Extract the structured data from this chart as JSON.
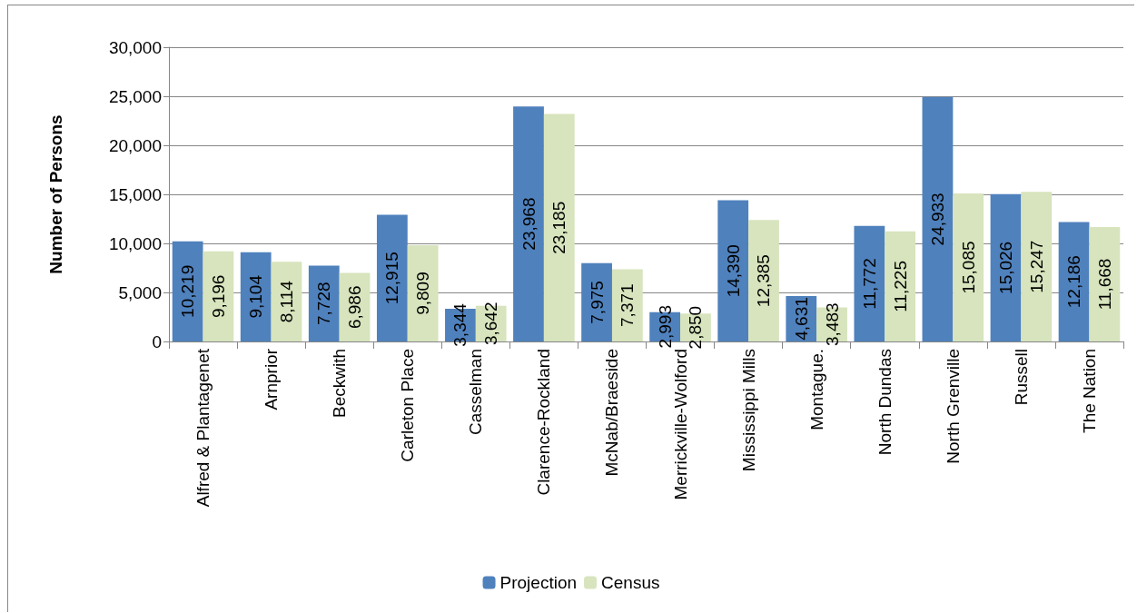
{
  "chart_data": {
    "type": "bar",
    "ylabel": "Number of Persons",
    "categories": [
      "Alfred & Plantagenet",
      "Arnprior",
      "Beckwith",
      "Carleton Place",
      "Casselman",
      "Clarence-Rockland",
      "McNab/Braeside",
      "Merrickville-Wolford",
      "Mississippi Mills",
      "Montague.",
      "North Dundas",
      "North Grenville",
      "Russell",
      "The Nation"
    ],
    "series": [
      {
        "name": "Projection",
        "color": "#4f81bd",
        "values": [
          10219,
          9104,
          7728,
          12915,
          3344,
          23968,
          7975,
          2993,
          14390,
          4631,
          11772,
          24933,
          15026,
          12186
        ],
        "value_labels": [
          "10,219",
          "9,104",
          "7,728",
          "12,915",
          "3,344",
          "23,968",
          "7,975",
          "2,993",
          "14,390",
          "4,631",
          "11,772",
          "24,933",
          "15,026",
          "12,186"
        ]
      },
      {
        "name": "Census",
        "color": "#d7e4bd",
        "values": [
          9196,
          8114,
          6986,
          9809,
          3642,
          23185,
          7371,
          2850,
          12385,
          3483,
          11225,
          15085,
          15247,
          11668
        ],
        "value_labels": [
          "9,196",
          "8,114",
          "6,986",
          "9,809",
          "3,642",
          "23,185",
          "7,371",
          "2,850",
          "12,385",
          "3,483",
          "11,225",
          "15,085",
          "15,247",
          "11,668"
        ]
      }
    ],
    "ylim": [
      0,
      30000
    ],
    "yticks": [
      0,
      {
        "value": 5000,
        "label": "5,000"
      },
      {
        "value": 10000,
        "label": "10,000"
      },
      {
        "value": 15000,
        "label": "15,000"
      },
      {
        "value": 20000,
        "label": "20,000"
      },
      {
        "value": 25000,
        "label": "25,000"
      },
      {
        "value": 30000,
        "label": "30,000"
      }
    ],
    "grid": "y",
    "legend": "bottom"
  }
}
